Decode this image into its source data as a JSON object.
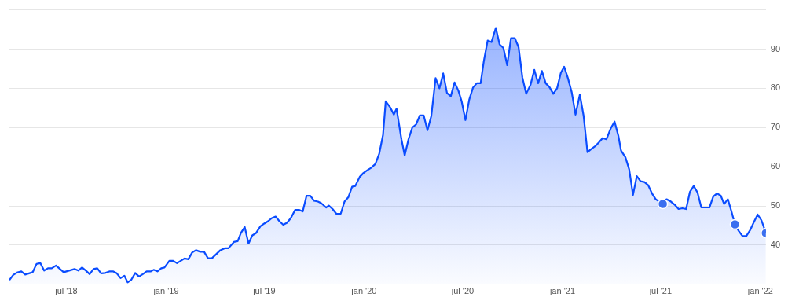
{
  "chart_data": {
    "type": "area",
    "grid": "y",
    "xlim": [
      "2018-03-18",
      "2022-01-11"
    ],
    "ylim": [
      30,
      100
    ],
    "xticks": [
      {
        "value": "2018-07-01",
        "label": "jul '18"
      },
      {
        "value": "2019-01-01",
        "label": "jan '19"
      },
      {
        "value": "2019-07-01",
        "label": "jul '19"
      },
      {
        "value": "2020-01-01",
        "label": "jan '20"
      },
      {
        "value": "2020-07-01",
        "label": "jul '20"
      },
      {
        "value": "2021-01-01",
        "label": "jan '21"
      },
      {
        "value": "2021-07-01",
        "label": "jul '21"
      },
      {
        "value": "2022-01-01",
        "label": "jan '22"
      }
    ],
    "yticks": [
      {
        "value": 30,
        "label": null
      },
      40,
      50,
      60,
      70,
      80,
      90,
      {
        "value": 100,
        "label": null
      }
    ],
    "series": [
      {
        "color": "#0a4cff",
        "marker": "none",
        "x": [
          "2018-03-18",
          "2018-03-25",
          "2018-04-01",
          "2018-04-09",
          "2018-04-16",
          "2018-04-30",
          "2018-05-07",
          "2018-05-14",
          "2018-05-21",
          "2018-05-28",
          "2018-06-04",
          "2018-06-12",
          "2018-06-26",
          "2018-07-06",
          "2018-07-16",
          "2018-07-23",
          "2018-07-30",
          "2018-08-06",
          "2018-08-13",
          "2018-08-20",
          "2018-08-27",
          "2018-09-03",
          "2018-09-11",
          "2018-09-19",
          "2018-09-25",
          "2018-10-02",
          "2018-10-09",
          "2018-10-16",
          "2018-10-22",
          "2018-10-29",
          "2018-11-05",
          "2018-11-12",
          "2018-11-19",
          "2018-11-26",
          "2018-12-04",
          "2018-12-09",
          "2018-12-16",
          "2018-12-23",
          "2018-12-29",
          "2019-01-07",
          "2019-01-14",
          "2019-01-21",
          "2019-01-28",
          "2019-02-04",
          "2019-02-11",
          "2019-02-18",
          "2019-02-25",
          "2019-03-05",
          "2019-03-12",
          "2019-03-19",
          "2019-03-26",
          "2019-04-02",
          "2019-04-11",
          "2019-04-19",
          "2019-04-26",
          "2019-05-06",
          "2019-05-13",
          "2019-05-19",
          "2019-05-26",
          "2019-06-02",
          "2019-06-09",
          "2019-06-16",
          "2019-06-24",
          "2019-07-01",
          "2019-07-08",
          "2019-07-15",
          "2019-07-22",
          "2019-07-29",
          "2019-08-05",
          "2019-08-12",
          "2019-08-19",
          "2019-08-27",
          "2019-09-03",
          "2019-09-10",
          "2019-09-17",
          "2019-09-24",
          "2019-10-01",
          "2019-10-08",
          "2019-10-14",
          "2019-10-23",
          "2019-10-28",
          "2019-11-04",
          "2019-11-11",
          "2019-11-19",
          "2019-11-26",
          "2019-12-03",
          "2019-12-10",
          "2019-12-16",
          "2019-12-24",
          "2019-12-31",
          "2020-01-07",
          "2020-01-14",
          "2020-01-22",
          "2020-01-29",
          "2020-02-05",
          "2020-02-10",
          "2020-02-18",
          "2020-02-25",
          "2020-03-01",
          "2020-03-10",
          "2020-03-16",
          "2020-03-23",
          "2020-03-30",
          "2020-04-06",
          "2020-04-13",
          "2020-04-20",
          "2020-04-27",
          "2020-05-04",
          "2020-05-12",
          "2020-05-19",
          "2020-05-26",
          "2020-06-02",
          "2020-06-09",
          "2020-06-16",
          "2020-06-23",
          "2020-06-29",
          "2020-07-06",
          "2020-07-13",
          "2020-07-20",
          "2020-07-27",
          "2020-08-03",
          "2020-08-09",
          "2020-08-16",
          "2020-08-23",
          "2020-08-31",
          "2020-09-07",
          "2020-09-14",
          "2020-09-21",
          "2020-09-28",
          "2020-10-05",
          "2020-10-12",
          "2020-10-19",
          "2020-10-26",
          "2020-11-03",
          "2020-11-10",
          "2020-11-17",
          "2020-11-24",
          "2020-12-01",
          "2020-12-08",
          "2020-12-15",
          "2020-12-22",
          "2020-12-29",
          "2021-01-04",
          "2021-01-11",
          "2021-01-18",
          "2021-01-25",
          "2021-02-02",
          "2021-02-09",
          "2021-02-16",
          "2021-02-23",
          "2021-03-02",
          "2021-03-09",
          "2021-03-16",
          "2021-03-23",
          "2021-03-31",
          "2021-04-07",
          "2021-04-14",
          "2021-04-19",
          "2021-04-27",
          "2021-05-04",
          "2021-05-11",
          "2021-05-18",
          "2021-05-25",
          "2021-06-01",
          "2021-06-08",
          "2021-06-15",
          "2021-06-22",
          "2021-07-05",
          "2021-07-12",
          "2021-07-20",
          "2021-07-27",
          "2021-08-03",
          "2021-08-10",
          "2021-08-17",
          "2021-08-24",
          "2021-08-31",
          "2021-09-07",
          "2021-09-14",
          "2021-09-22",
          "2021-09-29",
          "2021-10-06",
          "2021-10-13",
          "2021-10-20",
          "2021-10-26",
          "2021-11-02",
          "2021-11-09",
          "2021-11-15",
          "2021-11-22",
          "2021-11-29",
          "2021-12-06",
          "2021-12-13",
          "2021-12-20",
          "2021-12-27",
          "2022-01-03",
          "2022-01-11"
        ],
        "values": [
          31.1,
          32.4,
          33.0,
          33.3,
          32.5,
          33.1,
          35.2,
          35.4,
          33.5,
          34.1,
          34.1,
          34.8,
          33.1,
          33.5,
          33.9,
          33.5,
          34.3,
          33.5,
          32.6,
          33.9,
          34.1,
          32.8,
          32.9,
          33.3,
          33.3,
          32.8,
          31.6,
          32.2,
          30.5,
          31.2,
          32.9,
          32.0,
          32.6,
          33.3,
          33.3,
          33.7,
          33.3,
          34.1,
          34.3,
          36.0,
          36.0,
          35.4,
          36.0,
          36.6,
          36.4,
          38.1,
          38.7,
          38.3,
          38.3,
          36.7,
          36.6,
          37.5,
          38.7,
          39.2,
          39.2,
          40.8,
          41.0,
          43.1,
          44.6,
          40.4,
          42.5,
          43.1,
          44.8,
          45.5,
          46.1,
          46.9,
          47.3,
          46.1,
          45.2,
          45.7,
          46.9,
          49.0,
          49.0,
          48.6,
          52.6,
          52.6,
          51.3,
          51.1,
          50.7,
          49.6,
          50.1,
          49.2,
          48.0,
          48.0,
          51.1,
          52.2,
          54.9,
          55.1,
          57.4,
          58.4,
          59.1,
          59.7,
          60.7,
          63.3,
          68.1,
          76.7,
          75.2,
          73.3,
          74.8,
          67.0,
          62.9,
          67.0,
          70.0,
          70.8,
          73.1,
          73.1,
          69.3,
          72.9,
          82.6,
          80.0,
          83.8,
          78.8,
          78.0,
          81.5,
          79.4,
          76.7,
          71.9,
          77.1,
          80.2,
          81.3,
          81.3,
          87.0,
          92.2,
          91.8,
          95.4,
          91.2,
          90.3,
          85.9,
          92.8,
          92.8,
          90.5,
          82.8,
          78.6,
          80.9,
          84.7,
          81.3,
          84.4,
          81.3,
          80.3,
          78.6,
          80.0,
          84.0,
          85.5,
          82.6,
          79.0,
          73.3,
          78.4,
          72.9,
          63.7,
          64.5,
          65.2,
          66.2,
          67.3,
          67.0,
          69.8,
          71.5,
          67.9,
          64.1,
          62.4,
          59.3,
          52.8,
          57.6,
          56.3,
          56.1,
          55.3,
          53.2,
          51.7,
          50.5,
          51.7,
          51.1,
          50.3,
          49.2,
          49.4,
          49.2,
          53.6,
          55.1,
          53.4,
          49.6,
          49.6,
          49.6,
          52.4,
          53.2,
          52.6,
          50.5,
          51.7,
          48.4,
          45.3,
          43.6,
          42.3,
          42.3,
          43.8,
          45.9,
          47.8,
          46.3,
          43.1
        ]
      },
      {
        "type": "scatter",
        "color": "#3b6fef",
        "marker": "circle",
        "x": [
          "2021-07-05",
          "2021-11-15",
          "2022-01-11"
        ],
        "values": [
          50.5,
          45.3,
          43.1
        ]
      }
    ]
  }
}
